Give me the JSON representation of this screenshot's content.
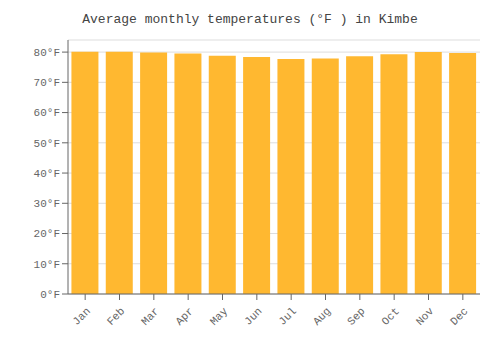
{
  "chart_data": {
    "type": "bar",
    "title": "Average monthly temperatures (°F ) in Kimbe",
    "categories": [
      "Jan",
      "Feb",
      "Mar",
      "Apr",
      "May",
      "Jun",
      "Jul",
      "Aug",
      "Sep",
      "Oct",
      "Nov",
      "Dec"
    ],
    "values": [
      80.1,
      80.1,
      79.9,
      79.5,
      78.8,
      78.4,
      77.7,
      77.9,
      78.6,
      79.3,
      80.0,
      79.7
    ],
    "color": "#FFB830",
    "ylim": [
      0,
      84
    ],
    "yticks": [
      {
        "value": 0,
        "label": "0°F"
      },
      {
        "value": 10,
        "label": "10°F"
      },
      {
        "value": 20,
        "label": "20°F"
      },
      {
        "value": 30,
        "label": "30°F"
      },
      {
        "value": 40,
        "label": "40°F"
      },
      {
        "value": 50,
        "label": "50°F"
      },
      {
        "value": 60,
        "label": "60°F"
      },
      {
        "value": 70,
        "label": "70°F"
      },
      {
        "value": 80,
        "label": "80°F"
      }
    ],
    "grid": true
  }
}
